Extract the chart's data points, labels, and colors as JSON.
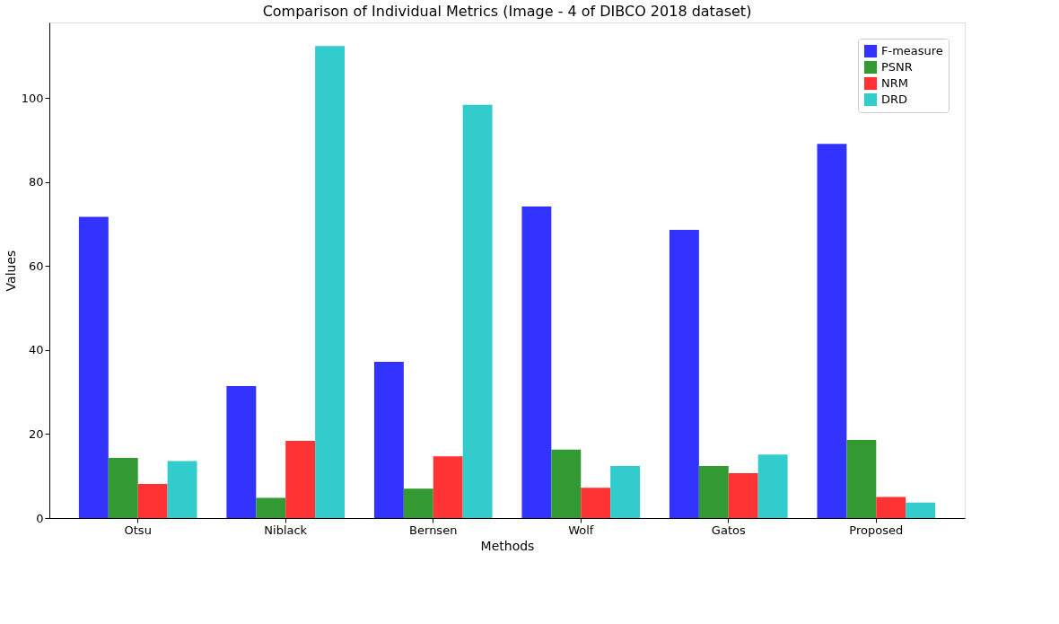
{
  "chart_data": {
    "type": "bar",
    "title": "Comparison of Individual Metrics (Image - 4 of DIBCO 2018 dataset)",
    "xlabel": "Methods",
    "ylabel": "Values",
    "categories": [
      "Otsu",
      "Niblack",
      "Bernsen",
      "Wolf",
      "Gatos",
      "Proposed"
    ],
    "series": [
      {
        "name": "F-measure",
        "color": "#3333ff",
        "values": [
          71.7,
          31.4,
          37.2,
          74.2,
          68.6,
          89.1
        ]
      },
      {
        "name": "PSNR",
        "color": "#339933",
        "values": [
          14.3,
          4.8,
          7.0,
          16.3,
          12.4,
          18.6
        ]
      },
      {
        "name": "NRM",
        "color": "#ff3333",
        "values": [
          8.1,
          18.4,
          14.7,
          7.2,
          10.7,
          5.0
        ]
      },
      {
        "name": "DRD",
        "color": "#33cccc",
        "values": [
          13.6,
          112.4,
          98.4,
          12.4,
          15.1,
          3.7
        ]
      }
    ],
    "ylim": [
      0,
      118
    ],
    "yticks": [
      0,
      20,
      40,
      60,
      80,
      100
    ],
    "grid": false,
    "legend": "top right"
  }
}
